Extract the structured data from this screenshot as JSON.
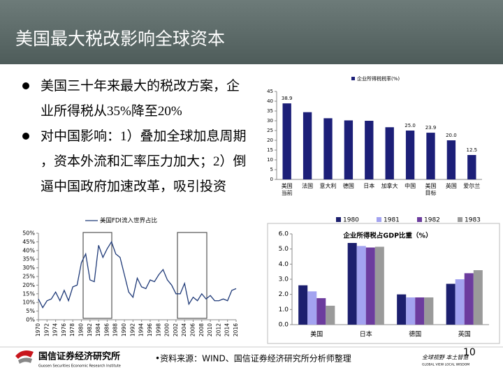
{
  "title": "美国最大税改影响全球资本",
  "bullets": [
    "美国三十年来最大的税改方案，企业所得税从35%降至20%",
    "对中国影响：1）叠加全球加息周期，资本外流和汇率压力加大；2）倒逼中国政府加速改革，吸引投资"
  ],
  "chart_data": [
    {
      "type": "bar",
      "categories": [
        "美国\n当前",
        "法国",
        "意大利",
        "德国",
        "日本",
        "加拿大",
        "中国",
        "美国\n目标",
        "英国",
        "爱尔兰"
      ],
      "series": [
        {
          "name": "企业所得税税率(%)",
          "color": "#1c1f78",
          "values": [
            38.9,
            34.4,
            31.3,
            30.2,
            30.0,
            26.7,
            25.0,
            23.9,
            20.0,
            12.5
          ],
          "value_labels": [
            "38.9",
            null,
            null,
            null,
            null,
            null,
            "25.0",
            "23.9",
            "20.0",
            "12.5"
          ]
        }
      ],
      "ylim": [
        0,
        45
      ],
      "yticks": [
        0,
        5,
        10,
        15,
        20,
        25,
        30,
        35,
        40,
        45
      ]
    },
    {
      "type": "line",
      "x": [
        1970,
        1971,
        1972,
        1973,
        1974,
        1975,
        1976,
        1977,
        1978,
        1979,
        1980,
        1981,
        1982,
        1983,
        1984,
        1985,
        1986,
        1987,
        1988,
        1989,
        1990,
        1991,
        1992,
        1993,
        1994,
        1995,
        1996,
        1997,
        1998,
        1999,
        2000,
        2001,
        2002,
        2003,
        2004,
        2005,
        2006,
        2007,
        2008,
        2009,
        2010,
        2011,
        2012,
        2013,
        2014,
        2015,
        2016
      ],
      "series": [
        {
          "name": "美国FDI流入世界占比",
          "color": "#1f3a78",
          "values": [
            12,
            7,
            11,
            12,
            16,
            11,
            17,
            11,
            19,
            20,
            33,
            38,
            23,
            22,
            43,
            36,
            41,
            45,
            38,
            36,
            26,
            16,
            13,
            24,
            19,
            18,
            23,
            22,
            26,
            29,
            23,
            20,
            15,
            15,
            21,
            9,
            13,
            11,
            15,
            12,
            14,
            11,
            11,
            12,
            11,
            17,
            18
          ]
        }
      ],
      "xlim": [
        1970,
        2016
      ],
      "xticks": [
        1970,
        1972,
        1974,
        1976,
        1978,
        1980,
        1982,
        1984,
        1986,
        1988,
        1990,
        1992,
        1994,
        1996,
        1998,
        2000,
        2002,
        2004,
        2006,
        2008,
        2010,
        2012,
        2014,
        2016
      ],
      "ylim": [
        0,
        50
      ],
      "yticks": [
        {
          "value": 0,
          "label": "0%"
        },
        {
          "value": 5,
          "label": "5%"
        },
        {
          "value": 10,
          "label": "10%"
        },
        {
          "value": 15,
          "label": "15%"
        },
        {
          "value": 20,
          "label": "20%"
        },
        {
          "value": 25,
          "label": "25%"
        },
        {
          "value": 30,
          "label": "30%"
        },
        {
          "value": 35,
          "label": "35%"
        },
        {
          "value": 40,
          "label": "40%"
        },
        {
          "value": 45,
          "label": "45%"
        },
        {
          "value": 50,
          "label": "50%"
        }
      ]
    },
    {
      "type": "grouped_bar",
      "title": "企业所得税占GDP比重（%）",
      "categories": [
        "美国",
        "日本",
        "德国",
        "英国"
      ],
      "series": [
        {
          "name": "1980",
          "color": "#1c1f6e",
          "values": [
            2.6,
            5.4,
            2.0,
            2.7
          ]
        },
        {
          "name": "1981",
          "color": "#a3a3f0",
          "values": [
            2.2,
            5.2,
            1.8,
            3.0
          ]
        },
        {
          "name": "1982",
          "color": "#6c3c9e",
          "values": [
            1.75,
            5.1,
            1.8,
            3.4
          ]
        },
        {
          "name": "1983",
          "color": "#9a9a9a",
          "values": [
            1.25,
            5.15,
            1.8,
            3.6
          ]
        }
      ],
      "ylim": [
        0,
        6
      ],
      "yticks": [
        {
          "value": 0,
          "label": "0.0"
        },
        {
          "value": 1,
          "label": "1.0"
        },
        {
          "value": 2,
          "label": "2.0"
        },
        {
          "value": 3,
          "label": "3.0"
        },
        {
          "value": 4,
          "label": "4.0"
        },
        {
          "value": 5,
          "label": "5.0"
        },
        {
          "value": 6,
          "label": "6.0"
        }
      ]
    }
  ],
  "footer": {
    "org": "国信证券经济研究所",
    "org_en": "Guosen Securities Economic Research Institute",
    "source": "•资料来源：WIND、国信证券经济研究所分析师整理",
    "page": "10",
    "slogan": "全球视野  本土智慧",
    "slogan_en": "GLOBAL VIEW    LOCAL WISDOM"
  }
}
